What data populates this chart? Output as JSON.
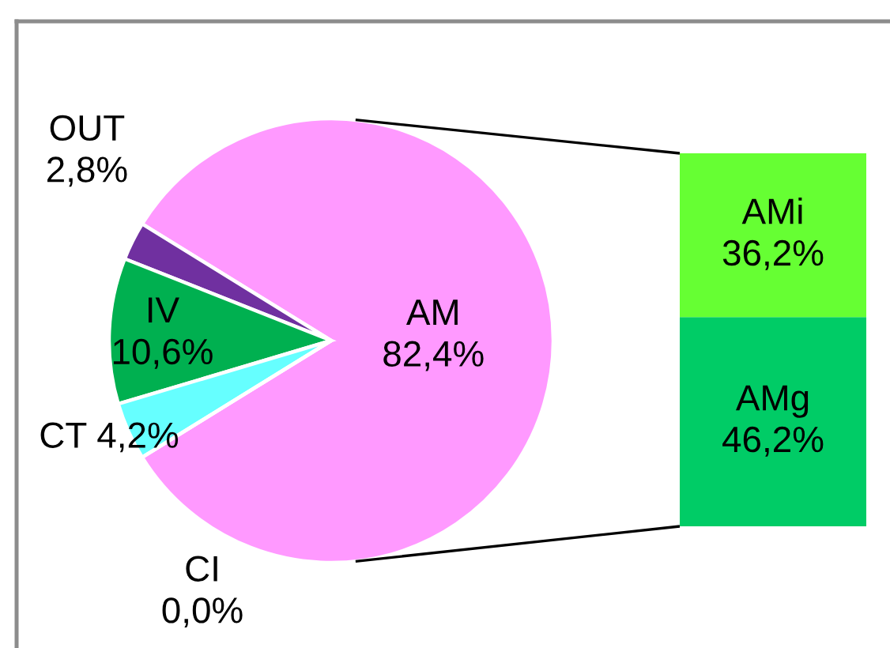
{
  "chart_data": [
    {
      "type": "pie",
      "categories": [
        "AM",
        "OUT",
        "IV",
        "CT",
        "CI"
      ],
      "values": [
        82.4,
        2.8,
        10.6,
        4.2,
        0.0
      ],
      "colors": [
        "#ff99ff",
        "#7030a0",
        "#00b050",
        "#66ffff",
        "#0070c0"
      ],
      "value_labels": [
        "82,4%",
        "2,8%",
        "10,6%",
        "4,2%",
        "0,0%"
      ]
    },
    {
      "type": "bar",
      "stacked": true,
      "tick_labels": false,
      "categories": [
        null
      ],
      "series": [
        {
          "name": "AMg",
          "color": "#00cc66",
          "values": [
            46.2
          ],
          "value_labels": [
            "46,2%"
          ]
        },
        {
          "name": "AMi",
          "color": "#66ff33",
          "values": [
            36.2
          ],
          "value_labels": [
            "36,2%"
          ]
        }
      ]
    }
  ]
}
